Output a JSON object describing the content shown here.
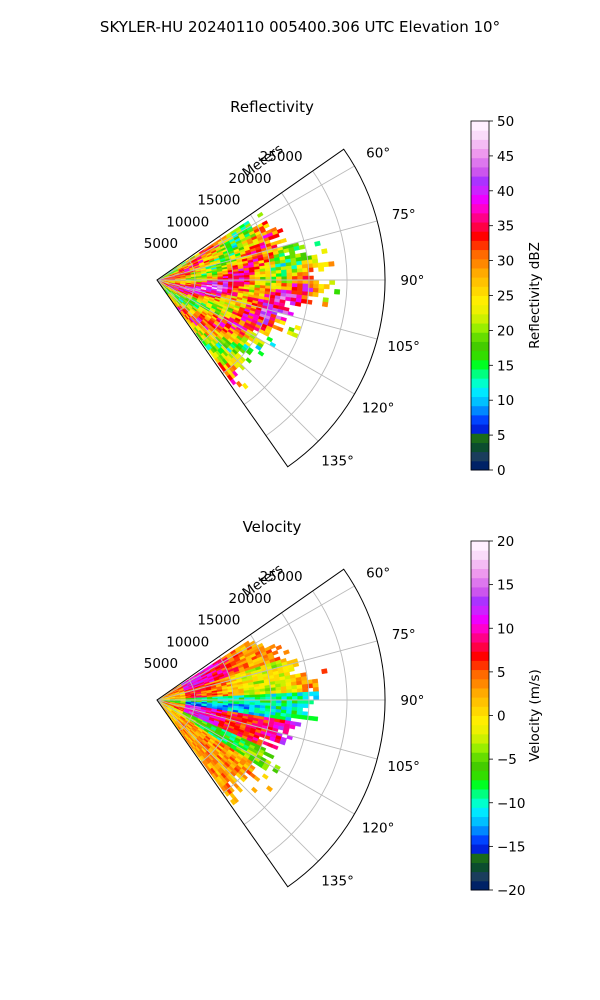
{
  "figure": {
    "title": "SKYLER-HU  20240110  005400.306 UTC Elevation 10°"
  },
  "chart_data": [
    {
      "type": "heatmap",
      "subtype": "polar-ppi-sector",
      "title": "Reflectivity",
      "range_label": "Meters",
      "range_ticks": [
        5000,
        10000,
        15000,
        20000,
        25000
      ],
      "range_tick_labels": [
        "5000",
        "10000",
        "15000",
        "20000",
        "25000"
      ],
      "range_max": 30000,
      "azimuth_range": [
        55,
        145
      ],
      "azimuth_ticks": [
        60,
        75,
        90,
        105,
        120,
        135
      ],
      "azimuth_tick_labels": [
        "60°",
        "75°",
        "90°",
        "105°",
        "120°",
        "135°"
      ],
      "grid": true,
      "colorbar": {
        "label": "Reflectivity dBZ",
        "vmin": 0,
        "vmax": 50,
        "ticks": [
          0,
          5,
          10,
          15,
          20,
          25,
          30,
          35,
          40,
          45,
          50
        ],
        "tick_labels": [
          "0",
          "5",
          "10",
          "15",
          "20",
          "25",
          "30",
          "35",
          "40",
          "45",
          "50"
        ],
        "colors": [
          "#002266",
          "#1a3d5c",
          "#0b4d2e",
          "#1a6b1a",
          "#0022dd",
          "#0044ff",
          "#0088ff",
          "#00c0ff",
          "#00e8ff",
          "#00ffcc",
          "#00ff80",
          "#00ff22",
          "#33dd00",
          "#44cc00",
          "#66dd00",
          "#99ee00",
          "#ccf000",
          "#eef000",
          "#ffee00",
          "#ffd800",
          "#ffc200",
          "#ffaa00",
          "#ff8800",
          "#ff6a00",
          "#ff3300",
          "#ff0000",
          "#ff0044",
          "#ff0088",
          "#ff00cc",
          "#ee00ff",
          "#cc22ff",
          "#aa33ff",
          "#cc55ee",
          "#dd77ee",
          "#ee99ee",
          "#f4bbf4",
          "#fadcfa",
          "#fff0ff"
        ]
      }
    },
    {
      "type": "heatmap",
      "subtype": "polar-ppi-sector",
      "title": "Velocity",
      "range_label": "Meters",
      "range_ticks": [
        5000,
        10000,
        15000,
        20000,
        25000
      ],
      "range_tick_labels": [
        "5000",
        "10000",
        "15000",
        "20000",
        "25000"
      ],
      "range_max": 30000,
      "azimuth_range": [
        55,
        145
      ],
      "azimuth_ticks": [
        60,
        75,
        90,
        105,
        120,
        135
      ],
      "azimuth_tick_labels": [
        "60°",
        "75°",
        "90°",
        "105°",
        "120°",
        "135°"
      ],
      "grid": true,
      "colorbar": {
        "label": "Velocity (m/s)",
        "vmin": -20,
        "vmax": 20,
        "ticks": [
          -20,
          -15,
          -10,
          -5,
          0,
          5,
          10,
          15,
          20
        ],
        "tick_labels": [
          "−20",
          "−15",
          "−10",
          "−5",
          "0",
          "5",
          "10",
          "15",
          "20"
        ],
        "colors": [
          "#002266",
          "#1a3d5c",
          "#0b4d2e",
          "#1a6b1a",
          "#0022dd",
          "#0044ff",
          "#0088ff",
          "#00c0ff",
          "#00e8ff",
          "#00ffcc",
          "#00ff80",
          "#00ff22",
          "#33dd00",
          "#44cc00",
          "#66dd00",
          "#99ee00",
          "#ccf000",
          "#eef000",
          "#ffee00",
          "#ffd800",
          "#ffc200",
          "#ffaa00",
          "#ff8800",
          "#ff6a00",
          "#ff3300",
          "#ff0000",
          "#ff0044",
          "#ff0088",
          "#ff00cc",
          "#ee00ff",
          "#cc22ff",
          "#aa33ff",
          "#cc55ee",
          "#dd77ee",
          "#ee99ee",
          "#f4bbf4",
          "#fadcfa",
          "#fff0ff"
        ]
      }
    }
  ]
}
